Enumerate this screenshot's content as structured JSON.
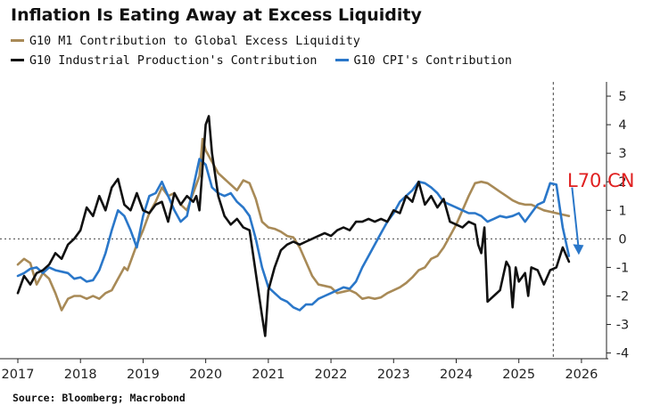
{
  "header": {
    "title": "Inflation Is Eating Away at Excess Liquidity"
  },
  "legend": [
    {
      "label": "G10 M1 Contribution to Global Excess Liquidity",
      "color": "#a88a57"
    },
    {
      "label": "G10 Industrial Production's Contribution",
      "color": "#111111"
    },
    {
      "label": "G10 CPI's Contribution",
      "color": "#2a77c9"
    }
  ],
  "footer": {
    "source": "Source: Bloomberg; Macrobond"
  },
  "watermark": "L70.CN",
  "chart_data": {
    "type": "line",
    "title": "Inflation Is Eating Away at Excess Liquidity",
    "xlabel": "",
    "ylabel": "",
    "xlim": [
      2017,
      2026.4
    ],
    "ylim": [
      -4.2,
      5.5
    ],
    "x_ticks": [
      2017,
      2018,
      2019,
      2020,
      2021,
      2022,
      2023,
      2024,
      2025,
      2026
    ],
    "y_ticks": [
      -4,
      -3,
      -2,
      -1,
      0,
      1,
      2,
      3,
      4,
      5
    ],
    "y_axis_side": "right",
    "zero_line": "dotted",
    "vertical_marker_x": 2025.55,
    "arrow": {
      "from": [
        2025.85,
        1.8
      ],
      "to": [
        2025.95,
        -0.5
      ],
      "color": "#2a77c9"
    },
    "grid": false,
    "legend_position": "top-left",
    "series": [
      {
        "name": "G10 M1 Contribution to Global Excess Liquidity",
        "color": "#a88a57",
        "points": [
          [
            2017.0,
            -0.9
          ],
          [
            2017.1,
            -0.7
          ],
          [
            2017.2,
            -0.85
          ],
          [
            2017.3,
            -1.6
          ],
          [
            2017.4,
            -1.2
          ],
          [
            2017.5,
            -1.4
          ],
          [
            2017.6,
            -1.9
          ],
          [
            2017.7,
            -2.5
          ],
          [
            2017.8,
            -2.1
          ],
          [
            2017.9,
            -2.0
          ],
          [
            2018.0,
            -2.0
          ],
          [
            2018.1,
            -2.1
          ],
          [
            2018.2,
            -2.0
          ],
          [
            2018.3,
            -2.1
          ],
          [
            2018.4,
            -1.9
          ],
          [
            2018.5,
            -1.8
          ],
          [
            2018.6,
            -1.4
          ],
          [
            2018.7,
            -1.0
          ],
          [
            2018.75,
            -1.1
          ],
          [
            2018.8,
            -0.8
          ],
          [
            2018.9,
            -0.2
          ],
          [
            2019.0,
            0.3
          ],
          [
            2019.1,
            0.9
          ],
          [
            2019.2,
            1.3
          ],
          [
            2019.3,
            1.8
          ],
          [
            2019.4,
            1.5
          ],
          [
            2019.5,
            1.6
          ],
          [
            2019.6,
            1.2
          ],
          [
            2019.7,
            1.0
          ],
          [
            2019.8,
            1.6
          ],
          [
            2019.9,
            2.2
          ],
          [
            2019.95,
            3.5
          ],
          [
            2020.0,
            3.1
          ],
          [
            2020.1,
            2.7
          ],
          [
            2020.2,
            2.3
          ],
          [
            2020.3,
            2.1
          ],
          [
            2020.4,
            1.9
          ],
          [
            2020.5,
            1.7
          ],
          [
            2020.6,
            2.05
          ],
          [
            2020.7,
            1.95
          ],
          [
            2020.8,
            1.4
          ],
          [
            2020.9,
            0.6
          ],
          [
            2021.0,
            0.4
          ],
          [
            2021.1,
            0.35
          ],
          [
            2021.2,
            0.25
          ],
          [
            2021.3,
            0.1
          ],
          [
            2021.4,
            0.05
          ],
          [
            2021.5,
            -0.3
          ],
          [
            2021.6,
            -0.8
          ],
          [
            2021.7,
            -1.3
          ],
          [
            2021.8,
            -1.6
          ],
          [
            2021.9,
            -1.65
          ],
          [
            2022.0,
            -1.7
          ],
          [
            2022.1,
            -1.9
          ],
          [
            2022.2,
            -1.85
          ],
          [
            2022.3,
            -1.8
          ],
          [
            2022.4,
            -1.9
          ],
          [
            2022.5,
            -2.1
          ],
          [
            2022.6,
            -2.05
          ],
          [
            2022.7,
            -2.1
          ],
          [
            2022.8,
            -2.05
          ],
          [
            2022.9,
            -1.9
          ],
          [
            2023.0,
            -1.8
          ],
          [
            2023.1,
            -1.7
          ],
          [
            2023.2,
            -1.55
          ],
          [
            2023.3,
            -1.35
          ],
          [
            2023.4,
            -1.1
          ],
          [
            2023.5,
            -1.0
          ],
          [
            2023.6,
            -0.7
          ],
          [
            2023.7,
            -0.6
          ],
          [
            2023.8,
            -0.3
          ],
          [
            2023.9,
            0.1
          ],
          [
            2024.0,
            0.5
          ],
          [
            2024.1,
            1.0
          ],
          [
            2024.2,
            1.5
          ],
          [
            2024.3,
            1.95
          ],
          [
            2024.4,
            2.0
          ],
          [
            2024.5,
            1.95
          ],
          [
            2024.6,
            1.8
          ],
          [
            2024.7,
            1.65
          ],
          [
            2024.8,
            1.5
          ],
          [
            2024.9,
            1.35
          ],
          [
            2025.0,
            1.25
          ],
          [
            2025.1,
            1.2
          ],
          [
            2025.2,
            1.2
          ],
          [
            2025.3,
            1.1
          ],
          [
            2025.4,
            1.0
          ],
          [
            2025.5,
            0.95
          ],
          [
            2025.6,
            0.9
          ],
          [
            2025.7,
            0.85
          ],
          [
            2025.8,
            0.8
          ]
        ]
      },
      {
        "name": "G10 Industrial Production's Contribution",
        "color": "#111111",
        "points": [
          [
            2017.0,
            -1.9
          ],
          [
            2017.1,
            -1.3
          ],
          [
            2017.2,
            -1.6
          ],
          [
            2017.3,
            -1.2
          ],
          [
            2017.4,
            -1.1
          ],
          [
            2017.5,
            -0.9
          ],
          [
            2017.6,
            -0.5
          ],
          [
            2017.7,
            -0.7
          ],
          [
            2017.8,
            -0.2
          ],
          [
            2017.9,
            0.0
          ],
          [
            2018.0,
            0.3
          ],
          [
            2018.1,
            1.1
          ],
          [
            2018.2,
            0.8
          ],
          [
            2018.3,
            1.5
          ],
          [
            2018.4,
            1.0
          ],
          [
            2018.5,
            1.8
          ],
          [
            2018.6,
            2.1
          ],
          [
            2018.7,
            1.2
          ],
          [
            2018.8,
            1.0
          ],
          [
            2018.9,
            1.6
          ],
          [
            2019.0,
            1.0
          ],
          [
            2019.1,
            0.9
          ],
          [
            2019.2,
            1.2
          ],
          [
            2019.3,
            1.3
          ],
          [
            2019.4,
            0.6
          ],
          [
            2019.5,
            1.6
          ],
          [
            2019.6,
            1.2
          ],
          [
            2019.7,
            1.5
          ],
          [
            2019.8,
            1.3
          ],
          [
            2019.85,
            1.5
          ],
          [
            2019.9,
            1.0
          ],
          [
            2020.0,
            4.0
          ],
          [
            2020.05,
            4.3
          ],
          [
            2020.1,
            3.0
          ],
          [
            2020.2,
            1.5
          ],
          [
            2020.3,
            0.8
          ],
          [
            2020.4,
            0.5
          ],
          [
            2020.5,
            0.7
          ],
          [
            2020.6,
            0.4
          ],
          [
            2020.7,
            0.3
          ],
          [
            2020.8,
            -1.2
          ],
          [
            2020.9,
            -2.7
          ],
          [
            2020.95,
            -3.4
          ],
          [
            2021.0,
            -1.8
          ],
          [
            2021.1,
            -1.0
          ],
          [
            2021.2,
            -0.4
          ],
          [
            2021.3,
            -0.2
          ],
          [
            2021.4,
            -0.1
          ],
          [
            2021.5,
            -0.2
          ],
          [
            2021.6,
            -0.1
          ],
          [
            2021.7,
            0.0
          ],
          [
            2021.8,
            0.1
          ],
          [
            2021.9,
            0.2
          ],
          [
            2022.0,
            0.1
          ],
          [
            2022.1,
            0.3
          ],
          [
            2022.2,
            0.4
          ],
          [
            2022.3,
            0.3
          ],
          [
            2022.4,
            0.6
          ],
          [
            2022.5,
            0.6
          ],
          [
            2022.6,
            0.7
          ],
          [
            2022.7,
            0.6
          ],
          [
            2022.8,
            0.7
          ],
          [
            2022.9,
            0.6
          ],
          [
            2023.0,
            1.0
          ],
          [
            2023.1,
            0.9
          ],
          [
            2023.2,
            1.5
          ],
          [
            2023.3,
            1.3
          ],
          [
            2023.4,
            2.0
          ],
          [
            2023.5,
            1.2
          ],
          [
            2023.6,
            1.5
          ],
          [
            2023.7,
            1.1
          ],
          [
            2023.8,
            1.4
          ],
          [
            2023.9,
            0.6
          ],
          [
            2024.0,
            0.5
          ],
          [
            2024.1,
            0.4
          ],
          [
            2024.2,
            0.6
          ],
          [
            2024.3,
            0.5
          ],
          [
            2024.35,
            -0.2
          ],
          [
            2024.4,
            -0.5
          ],
          [
            2024.45,
            0.4
          ],
          [
            2024.5,
            -2.2
          ],
          [
            2024.6,
            -2.0
          ],
          [
            2024.7,
            -1.8
          ],
          [
            2024.8,
            -0.8
          ],
          [
            2024.85,
            -1.0
          ],
          [
            2024.9,
            -2.4
          ],
          [
            2024.95,
            -1.0
          ],
          [
            2025.0,
            -1.5
          ],
          [
            2025.1,
            -1.2
          ],
          [
            2025.15,
            -2.0
          ],
          [
            2025.2,
            -1.0
          ],
          [
            2025.3,
            -1.1
          ],
          [
            2025.4,
            -1.6
          ],
          [
            2025.5,
            -1.1
          ],
          [
            2025.6,
            -1.0
          ],
          [
            2025.7,
            -0.3
          ],
          [
            2025.8,
            -0.8
          ]
        ]
      },
      {
        "name": "G10 CPI's Contribution",
        "color": "#2a77c9",
        "points": [
          [
            2017.0,
            -1.3
          ],
          [
            2017.1,
            -1.2
          ],
          [
            2017.2,
            -1.05
          ],
          [
            2017.3,
            -1.0
          ],
          [
            2017.4,
            -1.2
          ],
          [
            2017.5,
            -1.0
          ],
          [
            2017.6,
            -1.1
          ],
          [
            2017.7,
            -1.15
          ],
          [
            2017.8,
            -1.2
          ],
          [
            2017.9,
            -1.4
          ],
          [
            2018.0,
            -1.35
          ],
          [
            2018.1,
            -1.5
          ],
          [
            2018.2,
            -1.45
          ],
          [
            2018.3,
            -1.1
          ],
          [
            2018.4,
            -0.5
          ],
          [
            2018.5,
            0.3
          ],
          [
            2018.6,
            1.0
          ],
          [
            2018.7,
            0.8
          ],
          [
            2018.8,
            0.3
          ],
          [
            2018.9,
            -0.3
          ],
          [
            2019.0,
            0.8
          ],
          [
            2019.1,
            1.5
          ],
          [
            2019.2,
            1.6
          ],
          [
            2019.3,
            2.0
          ],
          [
            2019.4,
            1.5
          ],
          [
            2019.5,
            1.0
          ],
          [
            2019.6,
            0.6
          ],
          [
            2019.7,
            0.8
          ],
          [
            2019.8,
            1.8
          ],
          [
            2019.9,
            2.8
          ],
          [
            2020.0,
            2.6
          ],
          [
            2020.1,
            1.8
          ],
          [
            2020.2,
            1.6
          ],
          [
            2020.3,
            1.5
          ],
          [
            2020.4,
            1.6
          ],
          [
            2020.5,
            1.3
          ],
          [
            2020.6,
            1.1
          ],
          [
            2020.7,
            0.8
          ],
          [
            2020.8,
            0.0
          ],
          [
            2020.9,
            -1.0
          ],
          [
            2021.0,
            -1.7
          ],
          [
            2021.1,
            -1.9
          ],
          [
            2021.2,
            -2.1
          ],
          [
            2021.3,
            -2.2
          ],
          [
            2021.4,
            -2.4
          ],
          [
            2021.5,
            -2.5
          ],
          [
            2021.6,
            -2.3
          ],
          [
            2021.7,
            -2.3
          ],
          [
            2021.8,
            -2.1
          ],
          [
            2021.9,
            -2.0
          ],
          [
            2022.0,
            -1.9
          ],
          [
            2022.1,
            -1.8
          ],
          [
            2022.2,
            -1.7
          ],
          [
            2022.3,
            -1.75
          ],
          [
            2022.4,
            -1.5
          ],
          [
            2022.5,
            -1.0
          ],
          [
            2022.6,
            -0.6
          ],
          [
            2022.7,
            -0.2
          ],
          [
            2022.8,
            0.2
          ],
          [
            2022.9,
            0.6
          ],
          [
            2023.0,
            0.9
          ],
          [
            2023.1,
            1.3
          ],
          [
            2023.2,
            1.5
          ],
          [
            2023.3,
            1.7
          ],
          [
            2023.4,
            2.0
          ],
          [
            2023.5,
            1.95
          ],
          [
            2023.6,
            1.8
          ],
          [
            2023.7,
            1.6
          ],
          [
            2023.8,
            1.3
          ],
          [
            2023.9,
            1.2
          ],
          [
            2024.0,
            1.1
          ],
          [
            2024.1,
            1.0
          ],
          [
            2024.2,
            0.9
          ],
          [
            2024.3,
            0.9
          ],
          [
            2024.4,
            0.8
          ],
          [
            2024.5,
            0.6
          ],
          [
            2024.6,
            0.7
          ],
          [
            2024.7,
            0.8
          ],
          [
            2024.8,
            0.75
          ],
          [
            2024.9,
            0.8
          ],
          [
            2025.0,
            0.9
          ],
          [
            2025.1,
            0.6
          ],
          [
            2025.2,
            0.9
          ],
          [
            2025.3,
            1.2
          ],
          [
            2025.4,
            1.3
          ],
          [
            2025.5,
            1.95
          ],
          [
            2025.6,
            1.9
          ],
          [
            2025.7,
            0.4
          ],
          [
            2025.8,
            -0.6
          ]
        ]
      }
    ]
  }
}
